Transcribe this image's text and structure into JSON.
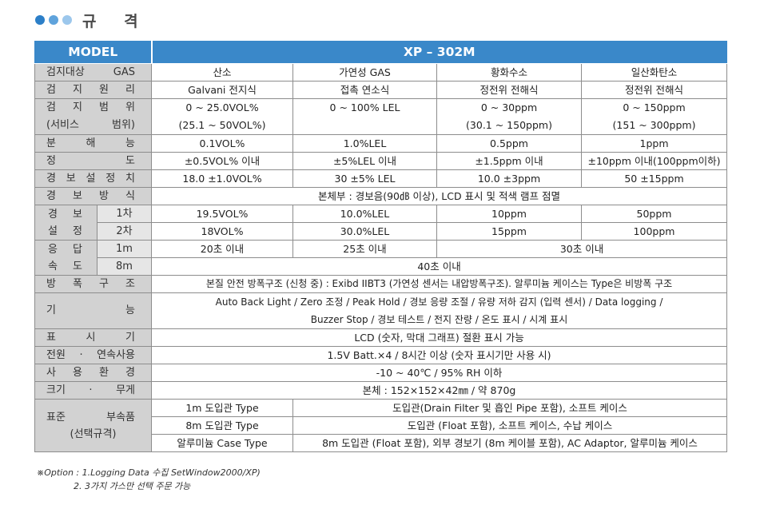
{
  "heading": {
    "title": "규 격",
    "dot_colors": [
      "#2c7fc8",
      "#5fa3dc",
      "#9cc7ec"
    ]
  },
  "header": {
    "model_label": "MODEL",
    "model_value": "XP – 302M"
  },
  "rows": {
    "gas": {
      "label": "검지대상 GAS",
      "c1": "산소",
      "c2": "가연성 GAS",
      "c3": "황화수소",
      "c4": "일산화탄소"
    },
    "principle": {
      "label": "검지원리",
      "c1": "Galvani 전지식",
      "c2": "접촉 연소식",
      "c3": "정전위 전해식",
      "c4": "정전위 전해식"
    },
    "range": {
      "label1": "검지범위",
      "label2": "(서비스 범위)",
      "c1a": "0 ~ 25.0VOL%",
      "c1b": "(25.1 ~ 50VOL%)",
      "c2a": "0 ~ 100% LEL",
      "c2b": "",
      "c3a": "0 ~ 30ppm",
      "c3b": "(30.1 ~ 150ppm)",
      "c4a": "0 ~ 150ppm",
      "c4b": "(151 ~ 300ppm)"
    },
    "resolution": {
      "label": "분해능",
      "c1": "0.1VOL%",
      "c2": "1.0%LEL",
      "c3": "0.5ppm",
      "c4": "1ppm"
    },
    "accuracy": {
      "label": "정도",
      "c1": "±0.5VOL% 이내",
      "c2": "±5%LEL 이내",
      "c3": "±1.5ppm 이내",
      "c4": "±10ppm 이내(100ppm이하)"
    },
    "alarm_set": {
      "label": "경보설정치",
      "c1": "18.0 ±1.0VOL%",
      "c2": "30 ±5% LEL",
      "c3": "10.0 ±3ppm",
      "c4": "50 ±15ppm"
    },
    "alarm_method": {
      "label": "경보방식",
      "value": "본체부 : 경보음(90㏈ 이상), LCD 표시 및 적색 램프 점멸"
    },
    "alarm_levels": {
      "label1": "경 보",
      "label2": "설 정",
      "first": {
        "label": "1차",
        "c1": "19.5VOL%",
        "c2": "10.0%LEL",
        "c3": "10ppm",
        "c4": "50ppm"
      },
      "second": {
        "label": "2차",
        "c1": "18VOL%",
        "c2": "30.0%LEL",
        "c3": "15ppm",
        "c4": "100ppm"
      }
    },
    "response": {
      "label1": "응 답",
      "label2": "속 도",
      "m1": {
        "label": "1m",
        "c1": "20초 이내",
        "c2": "25초 이내",
        "c3": "30초 이내"
      },
      "m8": {
        "label": "8m",
        "value": "40초 이내"
      }
    },
    "explosion": {
      "label": "방폭구조",
      "value": "본질 안전 방폭구조 (신청 중) : Exibd IIBT3 (가연성 센서는 내압방폭구조). 알루미늄 케이스는 Type은 비방폭 구조"
    },
    "function": {
      "label": "기능",
      "line1": "Auto Back Light / Zero 조정 / Peak Hold / 경보 응량 조절 / 유량 저하 감지 (입력 센서) / Data logging /",
      "line2": "Buzzer Stop / 경보 테스트 / 전지 잔량 / 온도 표시 / 시계 표시"
    },
    "display": {
      "label": "표시기",
      "value": "LCD (숫자, 막대 그래프) 절환 표시 가능"
    },
    "power": {
      "label": "전원 · 연속사용",
      "value": "1.5V Batt.×4 / 8시간 이상 (숫자 표시기만 사용 시)"
    },
    "environment": {
      "label": "사용환경",
      "value": "-10 ~ 40℃ / 95% RH 이하"
    },
    "size": {
      "label": "크기 · 무게",
      "value": "본체 : 152×152×42㎜ / 약 870g"
    },
    "accessories": {
      "label1": "표준 부속품",
      "label2": "(선택규격)",
      "items": [
        {
          "type": "1m 도입관 Type",
          "value": "도입관(Drain Filter 및 흡인 Pipe 포함), 소프트 케이스"
        },
        {
          "type": "8m 도입관 Type",
          "value": "도입관 (Float 포함), 소프트 케이스, 수납 케이스"
        },
        {
          "type": "알루미늄 Case Type",
          "value": "8m 도입관 (Float 포함), 외부 경보기 (8m 케이블 포함), AC Adaptor, 알루미늄 케이스"
        }
      ]
    }
  },
  "notes": {
    "line1": "※Option : 1.Logging Data 수집 SetWindow2000/XP)",
    "line2": "2. 3가지 가스만 선택 주문 가능"
  }
}
